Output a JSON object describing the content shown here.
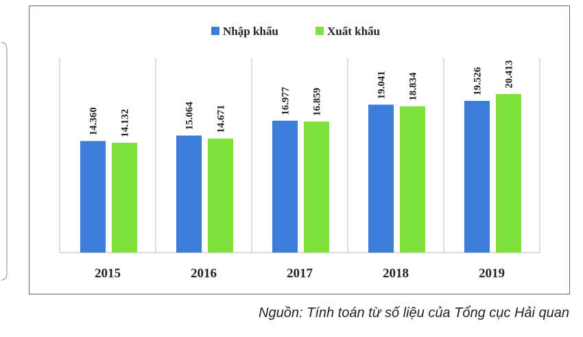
{
  "chart_data": {
    "type": "bar",
    "categories": [
      "2015",
      "2016",
      "2017",
      "2018",
      "2019"
    ],
    "series": [
      {
        "name": "Nhập khẩu",
        "color": "#3b7dd8",
        "values": [
          14360,
          15064,
          16977,
          19041,
          19526
        ],
        "value_labels": [
          "14.360",
          "15.064",
          "16.977",
          "19.041",
          "19.526"
        ]
      },
      {
        "name": "Xuất khẩu",
        "color": "#7ee23a",
        "values": [
          14132,
          14671,
          16859,
          18834,
          20413
        ],
        "value_labels": [
          "14.132",
          "14.671",
          "16.859",
          "18.834",
          "20.413"
        ]
      }
    ],
    "ylim": [
      0,
      25000
    ],
    "legend": "top",
    "source": "Nguồn: Tính toán từ số liệu của Tổng cục Hải quan"
  }
}
